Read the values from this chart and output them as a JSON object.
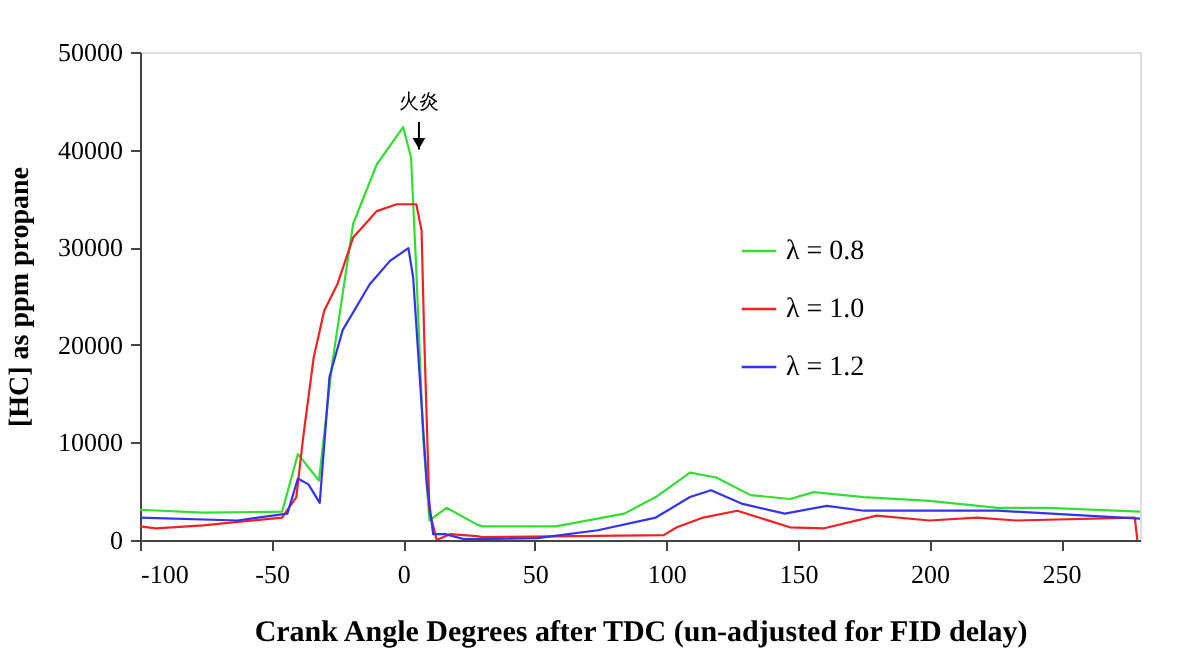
{
  "chart_data": {
    "type": "line",
    "xlabel": "Crank Angle Degrees after TDC (un-adjusted for FID delay)",
    "ylabel": "[HC] as ppm propane",
    "xlim": [
      -100,
      280
    ],
    "xticks": [
      -100,
      -50,
      0,
      50,
      100,
      150,
      200,
      250
    ],
    "ylim": [
      0,
      50000
    ],
    "yticks": [
      0,
      10000,
      20000,
      30000,
      40000,
      50000
    ],
    "grid": false,
    "legend": "right",
    "marker": "none",
    "line_style": "solid",
    "annotations": [
      {
        "text": "火炎",
        "x": 6,
        "y": 40000
      }
    ],
    "series": [
      {
        "name": "λ = 0.8",
        "color": "#33dd33",
        "x": [
          -100,
          -76,
          -46,
          -40,
          -32,
          -27,
          -19,
          -10,
          0,
          3,
          5,
          7.6,
          10,
          16.5,
          28,
          30,
          58,
          84,
          96,
          109,
          119,
          132,
          147,
          156,
          175,
          200,
          226,
          245,
          280
        ],
        "values": [
          3100,
          2800,
          2900,
          8800,
          6100,
          18000,
          32400,
          38500,
          42300,
          39200,
          27600,
          10500,
          2000,
          3300,
          1600,
          1400,
          1400,
          2700,
          4400,
          6900,
          6400,
          4600,
          4200,
          4900,
          4400,
          4000,
          3300,
          3300,
          2900
        ]
      },
      {
        "name": "λ = 1.0",
        "color": "#ee2222",
        "x": [
          -100,
          -94,
          -76,
          -46,
          -40.6,
          -38,
          -34,
          -30,
          -25,
          -19,
          -10,
          -2.5,
          5,
          7,
          8,
          10,
          12.7,
          17.8,
          28,
          30,
          99,
          104,
          114,
          127,
          147,
          160,
          180,
          200,
          218,
          233,
          278,
          279
        ],
        "values": [
          1400,
          1200,
          1500,
          2300,
          4400,
          10500,
          18700,
          23500,
          26200,
          31000,
          33700,
          34400,
          34400,
          31700,
          20800,
          3000,
          0,
          600,
          400,
          300,
          500,
          1300,
          2300,
          3000,
          1300,
          1200,
          2500,
          2000,
          2300,
          2000,
          2300,
          0
        ]
      },
      {
        "name": "λ = 1.2",
        "color": "#3333ee",
        "x": [
          -100,
          -63,
          -44,
          -40,
          -36,
          -31.7,
          -28,
          -23,
          -12.7,
          -5,
          2,
          3.8,
          6.3,
          9,
          11.4,
          16,
          23,
          30,
          51,
          74,
          96,
          109,
          117,
          129,
          145,
          161,
          175,
          226,
          280
        ],
        "values": [
          2300,
          2000,
          2700,
          6300,
          5700,
          3800,
          16700,
          21500,
          26200,
          28600,
          29900,
          26900,
          16700,
          5700,
          600,
          600,
          100,
          100,
          200,
          1000,
          2300,
          4400,
          5100,
          3700,
          2700,
          3500,
          3000,
          3000,
          2200
        ]
      }
    ]
  }
}
